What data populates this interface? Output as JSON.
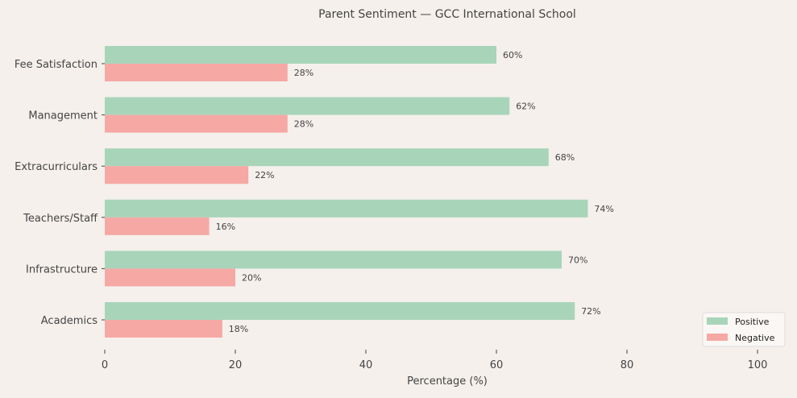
{
  "chart_data": {
    "type": "bar",
    "orientation": "horizontal",
    "title": "Parent Sentiment — GCC International School",
    "xlabel": "Percentage (%)",
    "ylabel": "",
    "xlim": [
      0,
      100
    ],
    "xticks": [
      0,
      20,
      40,
      60,
      80,
      100
    ],
    "grid": false,
    "legend_position": "bottom-right",
    "categories": [
      "Academics",
      "Infrastructure",
      "Teachers/Staff",
      "Extracurriculars",
      "Management",
      "Fee Satisfaction"
    ],
    "series": [
      {
        "name": "Positive",
        "color": "#a8d5ba",
        "values": [
          72,
          70,
          74,
          68,
          62,
          60
        ]
      },
      {
        "name": "Negative",
        "color": "#f6a8a4",
        "values": [
          18,
          20,
          16,
          22,
          28,
          28
        ]
      }
    ],
    "value_label_suffix": "%"
  }
}
